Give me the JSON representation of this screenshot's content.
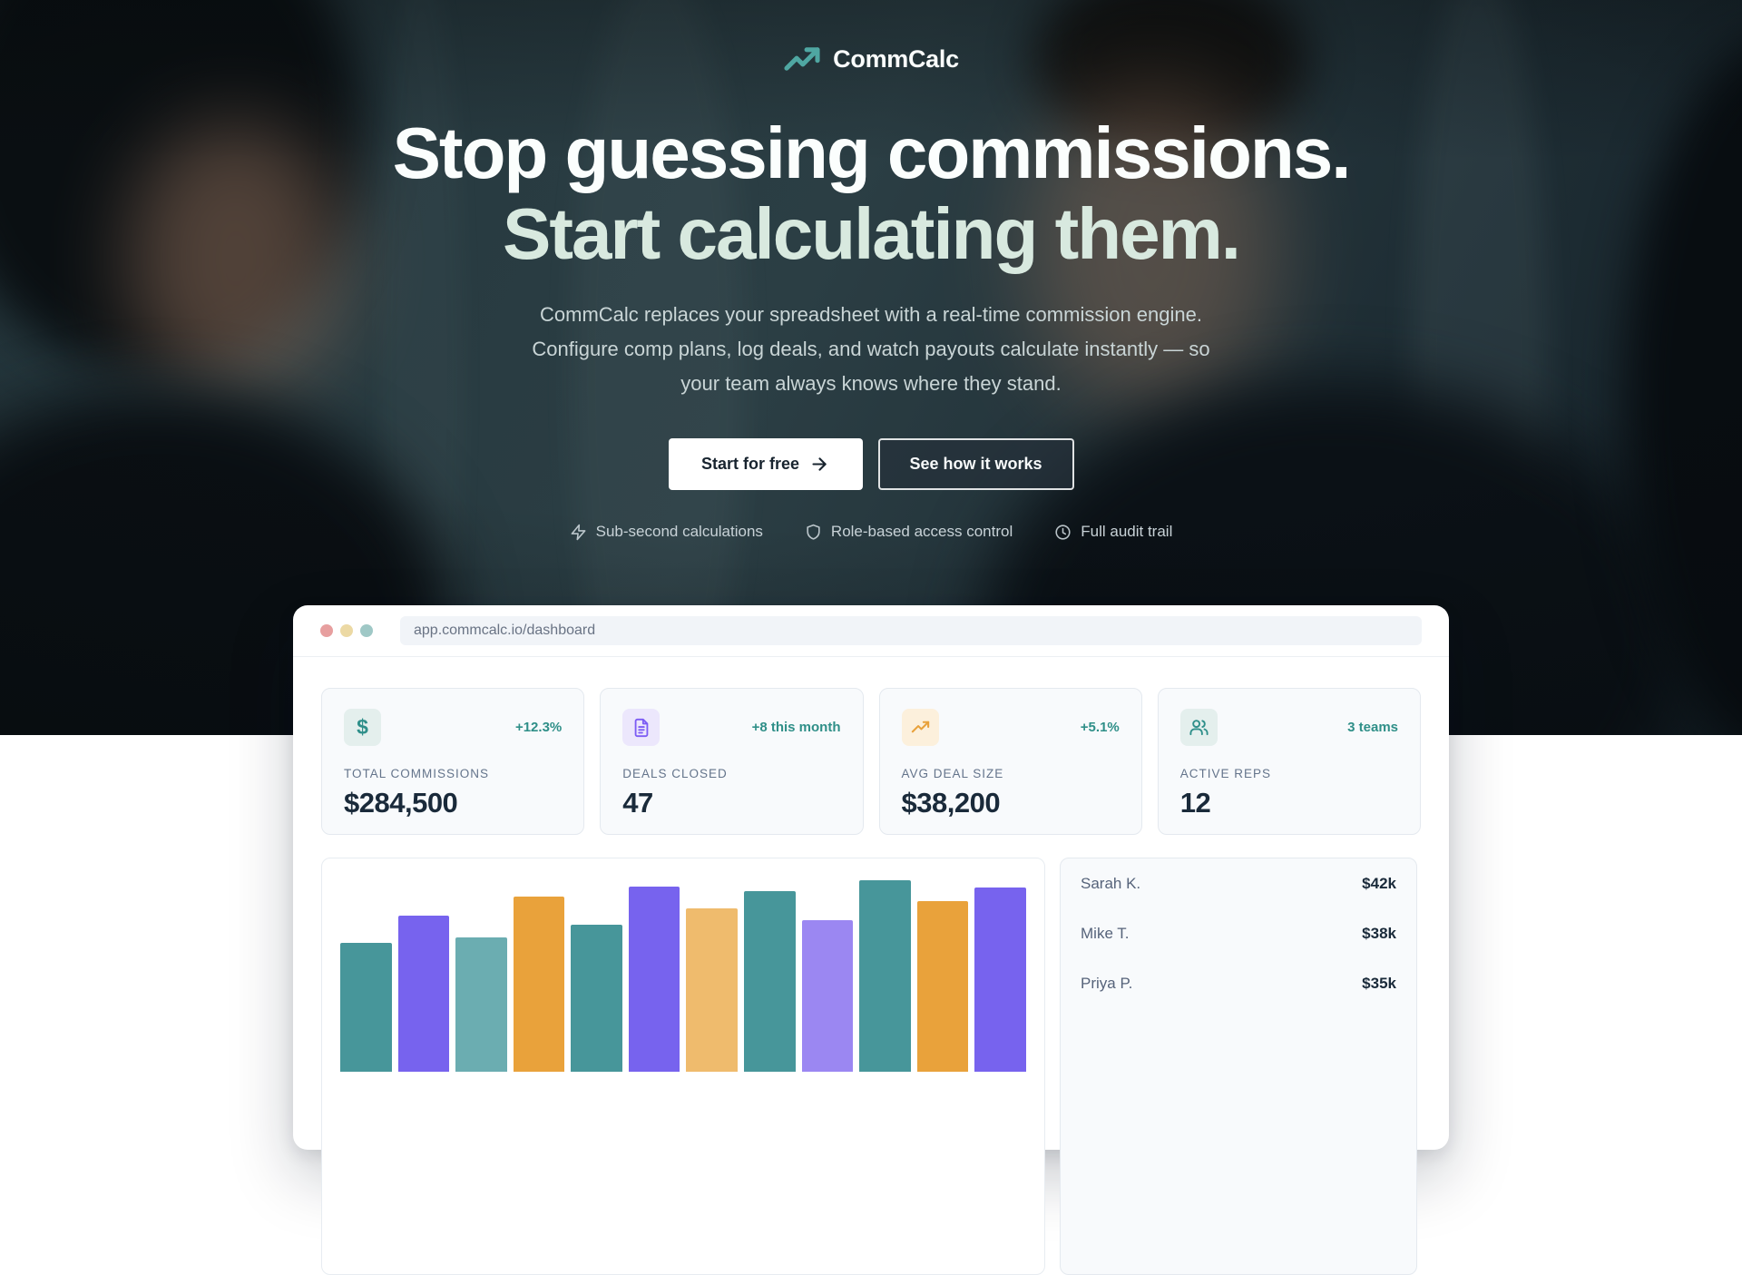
{
  "hero": {
    "brand": {
      "name": "CommCalc",
      "icon": "trending-up-icon",
      "icon_color": "#4fa7a2"
    },
    "headline_line1": "Stop guessing commissions.",
    "headline_line2": "Start calculating them.",
    "headline_line2_color": "#d8e9df",
    "subtitle_lines": [
      "CommCalc replaces your spreadsheet with a real-time commission engine.",
      "Configure comp plans, log deals, and watch payouts calculate instantly — so",
      "your team always knows where they stand."
    ],
    "cta_primary": "Start for free",
    "cta_secondary": "See how it works",
    "features": [
      {
        "icon": "zap-icon",
        "label": "Sub-second calculations"
      },
      {
        "icon": "shield-icon",
        "label": "Role-based access control"
      },
      {
        "icon": "clock-icon",
        "label": "Full audit trail"
      }
    ]
  },
  "browser": {
    "url": "app.commcalc.io/dashboard",
    "traffic_lights": {
      "red": "#e79f9f",
      "yellow": "#ecd9a4",
      "green": "#9fc8c6"
    }
  },
  "dashboard": {
    "stats": [
      {
        "icon": "dollar-icon",
        "icon_color": "#2f8f8a",
        "icon_bg": "#e4efed",
        "delta": "+12.3%",
        "label": "TOTAL COMMISSIONS",
        "value": "$284,500"
      },
      {
        "icon": "file-text-icon",
        "icon_color": "#7c5cf4",
        "icon_bg": "#ece7fc",
        "delta": "+8 this month",
        "label": "DEALS CLOSED",
        "value": "47"
      },
      {
        "icon": "trending-up-icon",
        "icon_color": "#e8a23c",
        "icon_bg": "#fcf0dc",
        "delta": "+5.1%",
        "label": "AVG DEAL SIZE",
        "value": "$38,200"
      },
      {
        "icon": "users-icon",
        "icon_color": "#2f8f8a",
        "icon_bg": "#e4efed",
        "delta": "3 teams",
        "label": "ACTIVE REPS",
        "value": "12"
      }
    ],
    "leaderboard": [
      {
        "name": "Sarah K.",
        "value": "$42k"
      },
      {
        "name": "Mike T.",
        "value": "$38k"
      },
      {
        "name": "Priya P.",
        "value": "$35k"
      }
    ]
  },
  "chart_data": [
    {
      "type": "bar",
      "title": "",
      "xlabel": "",
      "ylabel": "",
      "note": "unlabeled monthly commission bars, bottom edge cropped by viewport; heights in px relative to hidden baseline",
      "values": [
        142,
        172,
        148,
        193,
        162,
        204,
        180,
        199,
        167,
        211,
        188,
        203
      ],
      "colors": [
        "#47969a",
        "#7763ee",
        "#6badb1",
        "#e9a23b",
        "#47969a",
        "#7763ee",
        "#efbb6d",
        "#47969a",
        "#9b87f2",
        "#47969a",
        "#e9a23b",
        "#7763ee"
      ],
      "grid": false,
      "legend": false
    },
    {
      "type": "table",
      "title": "rep leaderboard",
      "rows": [
        [
          "Sarah K.",
          "$42k"
        ],
        [
          "Mike T.",
          "$38k"
        ],
        [
          "Priya P.",
          "$35k"
        ]
      ]
    }
  ]
}
